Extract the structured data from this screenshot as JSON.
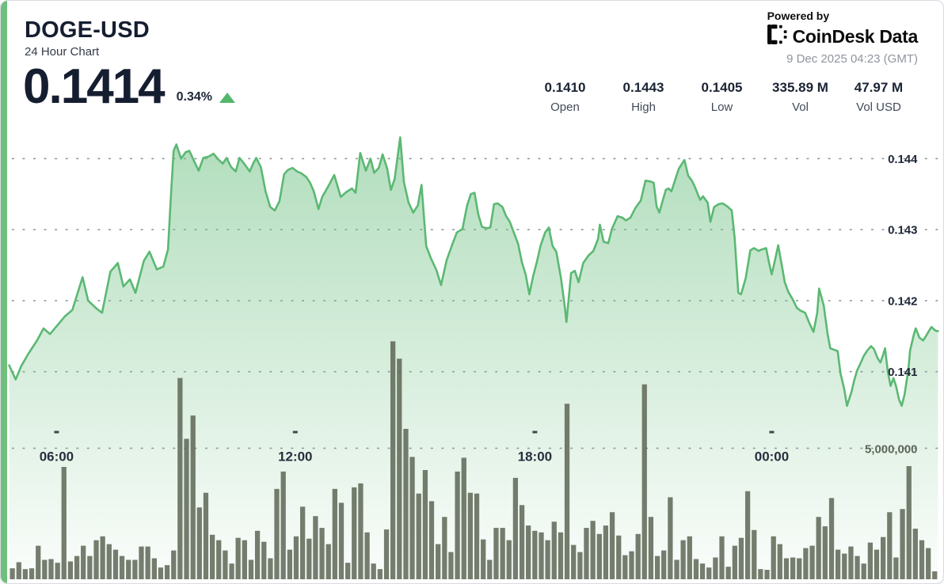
{
  "header": {
    "symbol": "DOGE-USD",
    "subtitle": "24 Hour Chart",
    "price": "0.1414",
    "change_percent": "0.34%",
    "change_direction": "up",
    "powered_by": "Powered by",
    "brand": "CoinDesk Data",
    "timestamp": "9 Dec 2025 04:23 (GMT)",
    "stats": [
      {
        "value": "0.1410",
        "label": "Open"
      },
      {
        "value": "0.1443",
        "label": "High"
      },
      {
        "value": "0.1405",
        "label": "Low"
      },
      {
        "value": "335.89 M",
        "label": "Vol"
      },
      {
        "value": "47.97 M",
        "label": "Vol USD"
      }
    ]
  },
  "colors": {
    "accent_green": "#6ec07c",
    "line_green": "#5bb873",
    "fill_green": "110,192,130",
    "up_green": "#52b76a",
    "volume_bar": "#5e6756",
    "grid_dot": "#90959f",
    "time_label": "#272f3e",
    "price_label": "#1f2838",
    "vol_label": "#5c6557",
    "tick_mark": "#3f4650"
  },
  "chart_data": {
    "type": "area+bar",
    "title": "DOGE-USD 24 hour price line with volume bars",
    "legend": "none",
    "grid": "dotted horizontal",
    "price_axis_side": "right",
    "price_gridlines": [
      {
        "label": "0.144",
        "value": 0.144
      },
      {
        "label": "0.143",
        "value": 0.143
      },
      {
        "label": "0.142",
        "value": 0.142
      },
      {
        "label": "0.141",
        "value": 0.141
      }
    ],
    "volume_gridline": {
      "label": "5,000,000",
      "value": 5000000
    },
    "x_ticks": [
      {
        "label": "06:00",
        "t": 0.051
      },
      {
        "label": "12:00",
        "t": 0.308
      },
      {
        "label": "18:00",
        "t": 0.566
      },
      {
        "label": "00:00",
        "t": 0.821
      }
    ],
    "price_series": [
      [
        0.0,
        0.14109
      ],
      [
        0.007,
        0.14089
      ],
      [
        0.013,
        0.14108
      ],
      [
        0.021,
        0.14126
      ],
      [
        0.03,
        0.14144
      ],
      [
        0.037,
        0.14161
      ],
      [
        0.044,
        0.14153
      ],
      [
        0.053,
        0.14167
      ],
      [
        0.06,
        0.14178
      ],
      [
        0.068,
        0.14187
      ],
      [
        0.079,
        0.14233
      ],
      [
        0.085,
        0.142
      ],
      [
        0.094,
        0.14189
      ],
      [
        0.1,
        0.14183
      ],
      [
        0.109,
        0.14241
      ],
      [
        0.117,
        0.14253
      ],
      [
        0.123,
        0.1422
      ],
      [
        0.13,
        0.1423
      ],
      [
        0.136,
        0.14211
      ],
      [
        0.145,
        0.14256
      ],
      [
        0.151,
        0.14269
      ],
      [
        0.159,
        0.14244
      ],
      [
        0.166,
        0.14248
      ],
      [
        0.171,
        0.14272
      ],
      [
        0.174,
        0.14344
      ],
      [
        0.177,
        0.14411
      ],
      [
        0.18,
        0.1442
      ],
      [
        0.185,
        0.144
      ],
      [
        0.19,
        0.14409
      ],
      [
        0.194,
        0.14411
      ],
      [
        0.2,
        0.14394
      ],
      [
        0.204,
        0.14383
      ],
      [
        0.209,
        0.14401
      ],
      [
        0.215,
        0.14403
      ],
      [
        0.22,
        0.14407
      ],
      [
        0.225,
        0.14399
      ],
      [
        0.23,
        0.14393
      ],
      [
        0.234,
        0.14401
      ],
      [
        0.239,
        0.14388
      ],
      [
        0.244,
        0.14382
      ],
      [
        0.248,
        0.14401
      ],
      [
        0.253,
        0.14393
      ],
      [
        0.259,
        0.14382
      ],
      [
        0.263,
        0.14394
      ],
      [
        0.266,
        0.14401
      ],
      [
        0.271,
        0.14388
      ],
      [
        0.276,
        0.14354
      ],
      [
        0.281,
        0.14332
      ],
      [
        0.286,
        0.14327
      ],
      [
        0.291,
        0.1434
      ],
      [
        0.296,
        0.14378
      ],
      [
        0.3,
        0.14384
      ],
      [
        0.305,
        0.14387
      ],
      [
        0.31,
        0.14382
      ],
      [
        0.315,
        0.14379
      ],
      [
        0.32,
        0.14374
      ],
      [
        0.324,
        0.14366
      ],
      [
        0.328,
        0.14354
      ],
      [
        0.333,
        0.14329
      ],
      [
        0.337,
        0.14346
      ],
      [
        0.344,
        0.14362
      ],
      [
        0.35,
        0.14377
      ],
      [
        0.357,
        0.14346
      ],
      [
        0.363,
        0.14353
      ],
      [
        0.369,
        0.14358
      ],
      [
        0.373,
        0.14352
      ],
      [
        0.378,
        0.14408
      ],
      [
        0.384,
        0.14383
      ],
      [
        0.389,
        0.144
      ],
      [
        0.393,
        0.1438
      ],
      [
        0.398,
        0.14387
      ],
      [
        0.402,
        0.14406
      ],
      [
        0.407,
        0.14386
      ],
      [
        0.411,
        0.14356
      ],
      [
        0.415,
        0.14371
      ],
      [
        0.421,
        0.1443
      ],
      [
        0.425,
        0.14367
      ],
      [
        0.43,
        0.14338
      ],
      [
        0.435,
        0.14324
      ],
      [
        0.44,
        0.14334
      ],
      [
        0.444,
        0.14363
      ],
      [
        0.449,
        0.14277
      ],
      [
        0.454,
        0.1426
      ],
      [
        0.46,
        0.14243
      ],
      [
        0.465,
        0.14222
      ],
      [
        0.471,
        0.14257
      ],
      [
        0.477,
        0.14279
      ],
      [
        0.482,
        0.14296
      ],
      [
        0.488,
        0.14301
      ],
      [
        0.493,
        0.14334
      ],
      [
        0.497,
        0.1435
      ],
      [
        0.501,
        0.14352
      ],
      [
        0.505,
        0.14322
      ],
      [
        0.509,
        0.14304
      ],
      [
        0.514,
        0.14302
      ],
      [
        0.518,
        0.14303
      ],
      [
        0.522,
        0.14336
      ],
      [
        0.526,
        0.14337
      ],
      [
        0.531,
        0.14332
      ],
      [
        0.535,
        0.14319
      ],
      [
        0.539,
        0.14311
      ],
      [
        0.543,
        0.14297
      ],
      [
        0.548,
        0.1428
      ],
      [
        0.552,
        0.14254
      ],
      [
        0.556,
        0.14237
      ],
      [
        0.56,
        0.14209
      ],
      [
        0.564,
        0.14234
      ],
      [
        0.568,
        0.14254
      ],
      [
        0.572,
        0.14277
      ],
      [
        0.577,
        0.14296
      ],
      [
        0.581,
        0.14303
      ],
      [
        0.585,
        0.14277
      ],
      [
        0.589,
        0.14269
      ],
      [
        0.594,
        0.14233
      ],
      [
        0.598,
        0.14194
      ],
      [
        0.6,
        0.1417
      ],
      [
        0.605,
        0.14239
      ],
      [
        0.609,
        0.14242
      ],
      [
        0.613,
        0.14226
      ],
      [
        0.618,
        0.14253
      ],
      [
        0.624,
        0.14264
      ],
      [
        0.629,
        0.1427
      ],
      [
        0.634,
        0.14287
      ],
      [
        0.636,
        0.14307
      ],
      [
        0.64,
        0.14283
      ],
      [
        0.645,
        0.14281
      ],
      [
        0.649,
        0.14301
      ],
      [
        0.655,
        0.14319
      ],
      [
        0.66,
        0.14317
      ],
      [
        0.664,
        0.14313
      ],
      [
        0.669,
        0.14317
      ],
      [
        0.674,
        0.1433
      ],
      [
        0.68,
        0.14341
      ],
      [
        0.685,
        0.14369
      ],
      [
        0.69,
        0.14368
      ],
      [
        0.694,
        0.14366
      ],
      [
        0.697,
        0.14333
      ],
      [
        0.7,
        0.14324
      ],
      [
        0.703,
        0.14338
      ],
      [
        0.707,
        0.14356
      ],
      [
        0.71,
        0.14358
      ],
      [
        0.713,
        0.14354
      ],
      [
        0.717,
        0.1437
      ],
      [
        0.721,
        0.14386
      ],
      [
        0.727,
        0.14398
      ],
      [
        0.731,
        0.14376
      ],
      [
        0.735,
        0.14369
      ],
      [
        0.738,
        0.14361
      ],
      [
        0.742,
        0.14348
      ],
      [
        0.744,
        0.14342
      ],
      [
        0.747,
        0.14347
      ],
      [
        0.752,
        0.14338
      ],
      [
        0.755,
        0.14311
      ],
      [
        0.759,
        0.14332
      ],
      [
        0.764,
        0.14336
      ],
      [
        0.768,
        0.14337
      ],
      [
        0.773,
        0.14333
      ],
      [
        0.778,
        0.14327
      ],
      [
        0.781,
        0.14289
      ],
      [
        0.785,
        0.14211
      ],
      [
        0.788,
        0.14209
      ],
      [
        0.793,
        0.14232
      ],
      [
        0.798,
        0.14271
      ],
      [
        0.802,
        0.14274
      ],
      [
        0.807,
        0.1427
      ],
      [
        0.81,
        0.14272
      ],
      [
        0.815,
        0.14274
      ],
      [
        0.818,
        0.14254
      ],
      [
        0.821,
        0.14237
      ],
      [
        0.825,
        0.1426
      ],
      [
        0.828,
        0.14278
      ],
      [
        0.832,
        0.14249
      ],
      [
        0.835,
        0.14226
      ],
      [
        0.839,
        0.14212
      ],
      [
        0.844,
        0.14201
      ],
      [
        0.848,
        0.1419
      ],
      [
        0.852,
        0.14186
      ],
      [
        0.857,
        0.14183
      ],
      [
        0.862,
        0.14167
      ],
      [
        0.866,
        0.14156
      ],
      [
        0.87,
        0.14183
      ],
      [
        0.872,
        0.14217
      ],
      [
        0.877,
        0.14193
      ],
      [
        0.881,
        0.14154
      ],
      [
        0.884,
        0.14133
      ],
      [
        0.888,
        0.14131
      ],
      [
        0.892,
        0.14129
      ],
      [
        0.895,
        0.14098
      ],
      [
        0.899,
        0.14076
      ],
      [
        0.902,
        0.14052
      ],
      [
        0.907,
        0.14072
      ],
      [
        0.91,
        0.14089
      ],
      [
        0.913,
        0.14102
      ],
      [
        0.917,
        0.14113
      ],
      [
        0.92,
        0.14122
      ],
      [
        0.924,
        0.1413
      ],
      [
        0.928,
        0.14136
      ],
      [
        0.931,
        0.14132
      ],
      [
        0.935,
        0.14119
      ],
      [
        0.938,
        0.14113
      ],
      [
        0.941,
        0.14124
      ],
      [
        0.943,
        0.14133
      ],
      [
        0.946,
        0.141
      ],
      [
        0.949,
        0.1408
      ],
      [
        0.952,
        0.14091
      ],
      [
        0.955,
        0.14079
      ],
      [
        0.958,
        0.14061
      ],
      [
        0.961,
        0.14052
      ],
      [
        0.964,
        0.14068
      ],
      [
        0.968,
        0.14102
      ],
      [
        0.97,
        0.1413
      ],
      [
        0.974,
        0.14152
      ],
      [
        0.976,
        0.14161
      ],
      [
        0.98,
        0.14148
      ],
      [
        0.984,
        0.14144
      ],
      [
        0.987,
        0.1415
      ],
      [
        0.991,
        0.14159
      ],
      [
        0.993,
        0.14163
      ],
      [
        0.997,
        0.14158
      ],
      [
        1.0,
        0.14157
      ]
    ],
    "volume_series_millions": [
      0.42,
      0.65,
      0.39,
      0.42,
      1.28,
      0.74,
      0.77,
      0.63,
      4.29,
      0.68,
      0.89,
      1.28,
      0.89,
      1.49,
      1.64,
      1.34,
      1.13,
      0.89,
      0.74,
      0.74,
      1.25,
      1.25,
      0.8,
      0.45,
      0.54,
      1.1,
      7.68,
      5.36,
      6.25,
      2.74,
      3.3,
      1.7,
      1.49,
      1.1,
      0.6,
      1.58,
      1.49,
      0.74,
      1.85,
      1.43,
      0.8,
      3.45,
      4.11,
      1.13,
      1.64,
      2.77,
      1.55,
      2.41,
      1.96,
      1.34,
      3.45,
      2.92,
      0.63,
      3.51,
      3.66,
      1.79,
      0.6,
      0.39,
      1.9,
      9.08,
      8.42,
      5.74,
      4.67,
      3.27,
      4.17,
      2.98,
      1.34,
      2.38,
      1.04,
      4.11,
      4.64,
      3.3,
      3.27,
      1.52,
      0.74,
      1.96,
      1.96,
      1.49,
      3.87,
      2.83,
      2.05,
      1.85,
      1.79,
      1.49,
      2.2,
      1.79,
      6.7,
      1.31,
      1.04,
      1.96,
      2.23,
      1.73,
      2.05,
      2.56,
      1.67,
      0.92,
      1.07,
      1.73,
      7.44,
      2.38,
      0.89,
      1.1,
      3.13,
      0.74,
      1.49,
      1.64,
      0.77,
      0.6,
      0.45,
      0.83,
      1.64,
      0.48,
      1.28,
      1.58,
      3.36,
      1.88,
      0.39,
      0.36,
      1.64,
      1.34,
      0.8,
      0.83,
      0.8,
      1.19,
      1.28,
      2.38,
      2.02,
      3.1,
      1.13,
      0.98,
      1.25,
      0.89,
      0.6,
      1.4,
      1.13,
      1.61,
      2.56,
      0.83,
      2.68,
      4.32,
      1.93,
      1.49,
      1.19,
      0.3
    ]
  }
}
